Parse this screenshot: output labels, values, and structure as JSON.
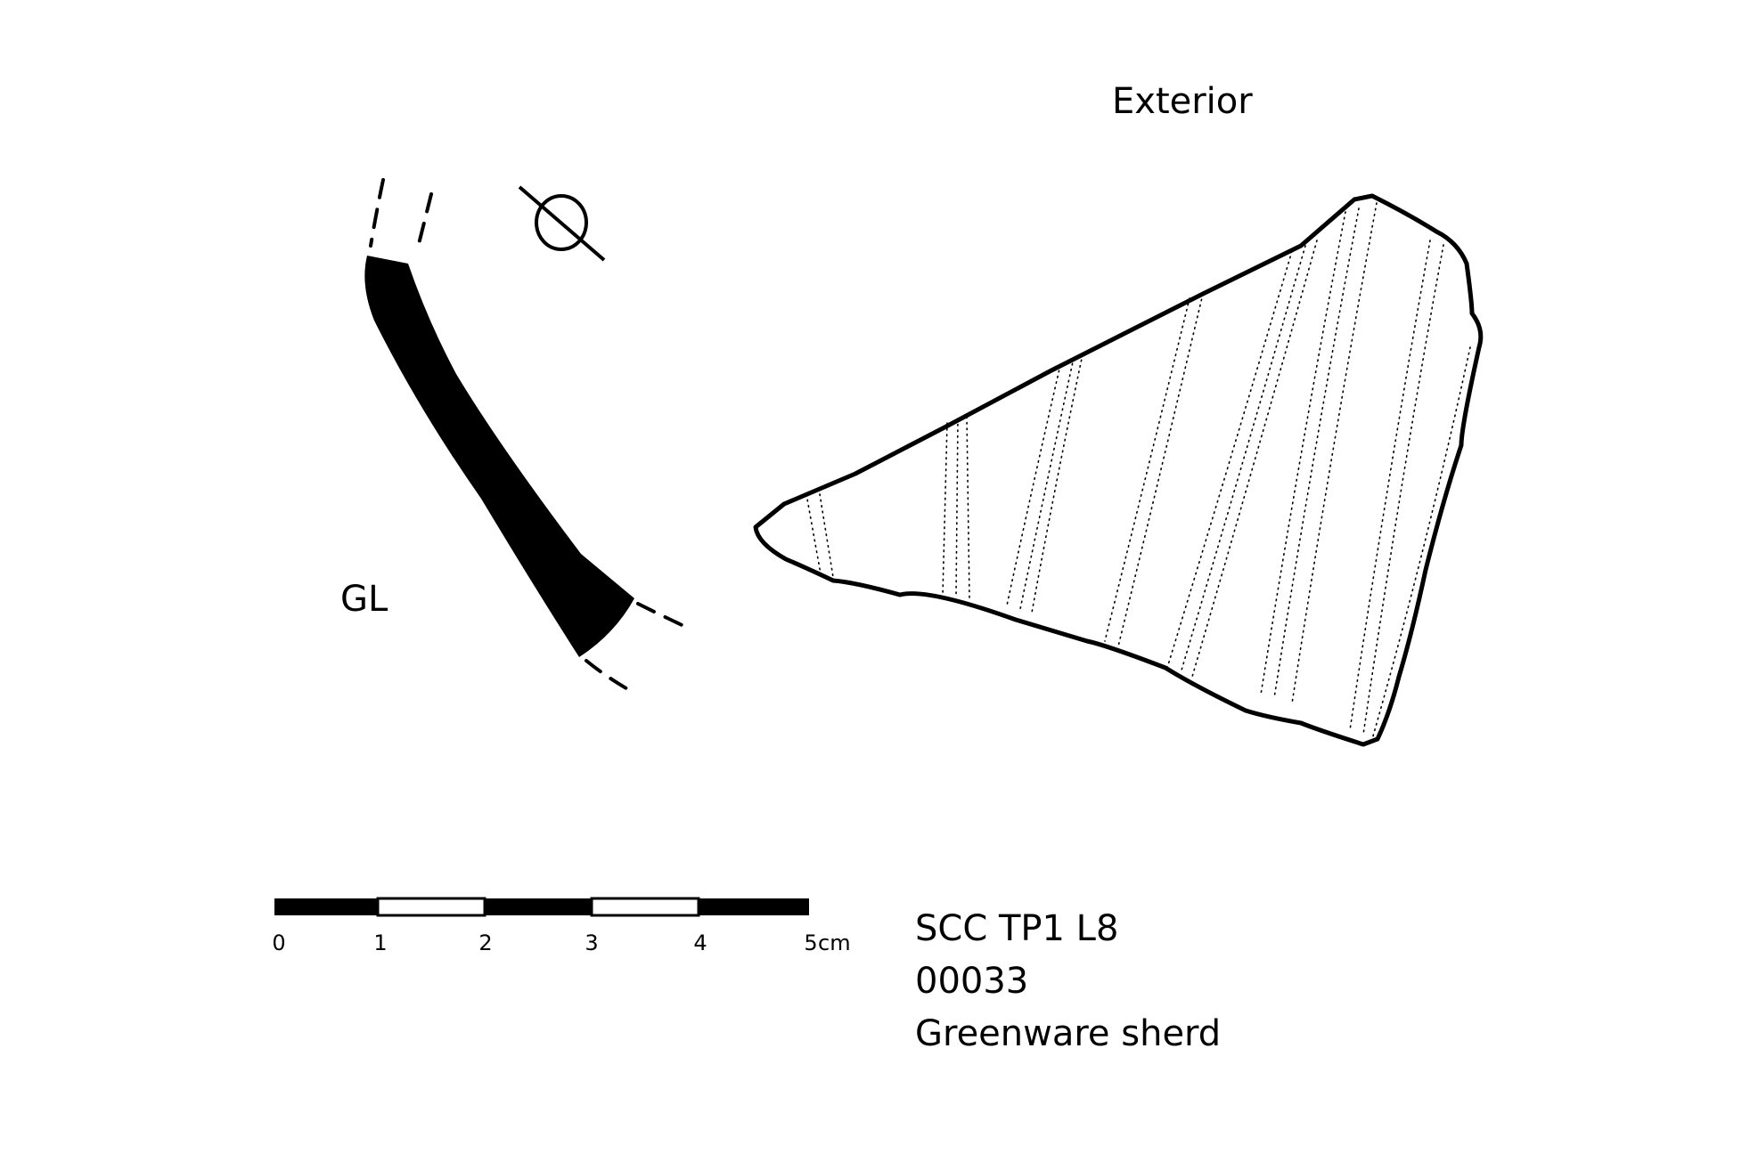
{
  "view_labels": {
    "exterior": "Exterior",
    "profile": "GL"
  },
  "scale_bar": {
    "ticks": [
      "0",
      "1",
      "2",
      "3",
      "4",
      "5"
    ],
    "unit": "cm"
  },
  "catalogue": {
    "context": "SCC TP1 L8",
    "number": "00033",
    "description": "Greenware sherd"
  },
  "colors": {
    "ink": "#000000",
    "paper": "#ffffff"
  },
  "icons": [
    "diameter-icon"
  ]
}
